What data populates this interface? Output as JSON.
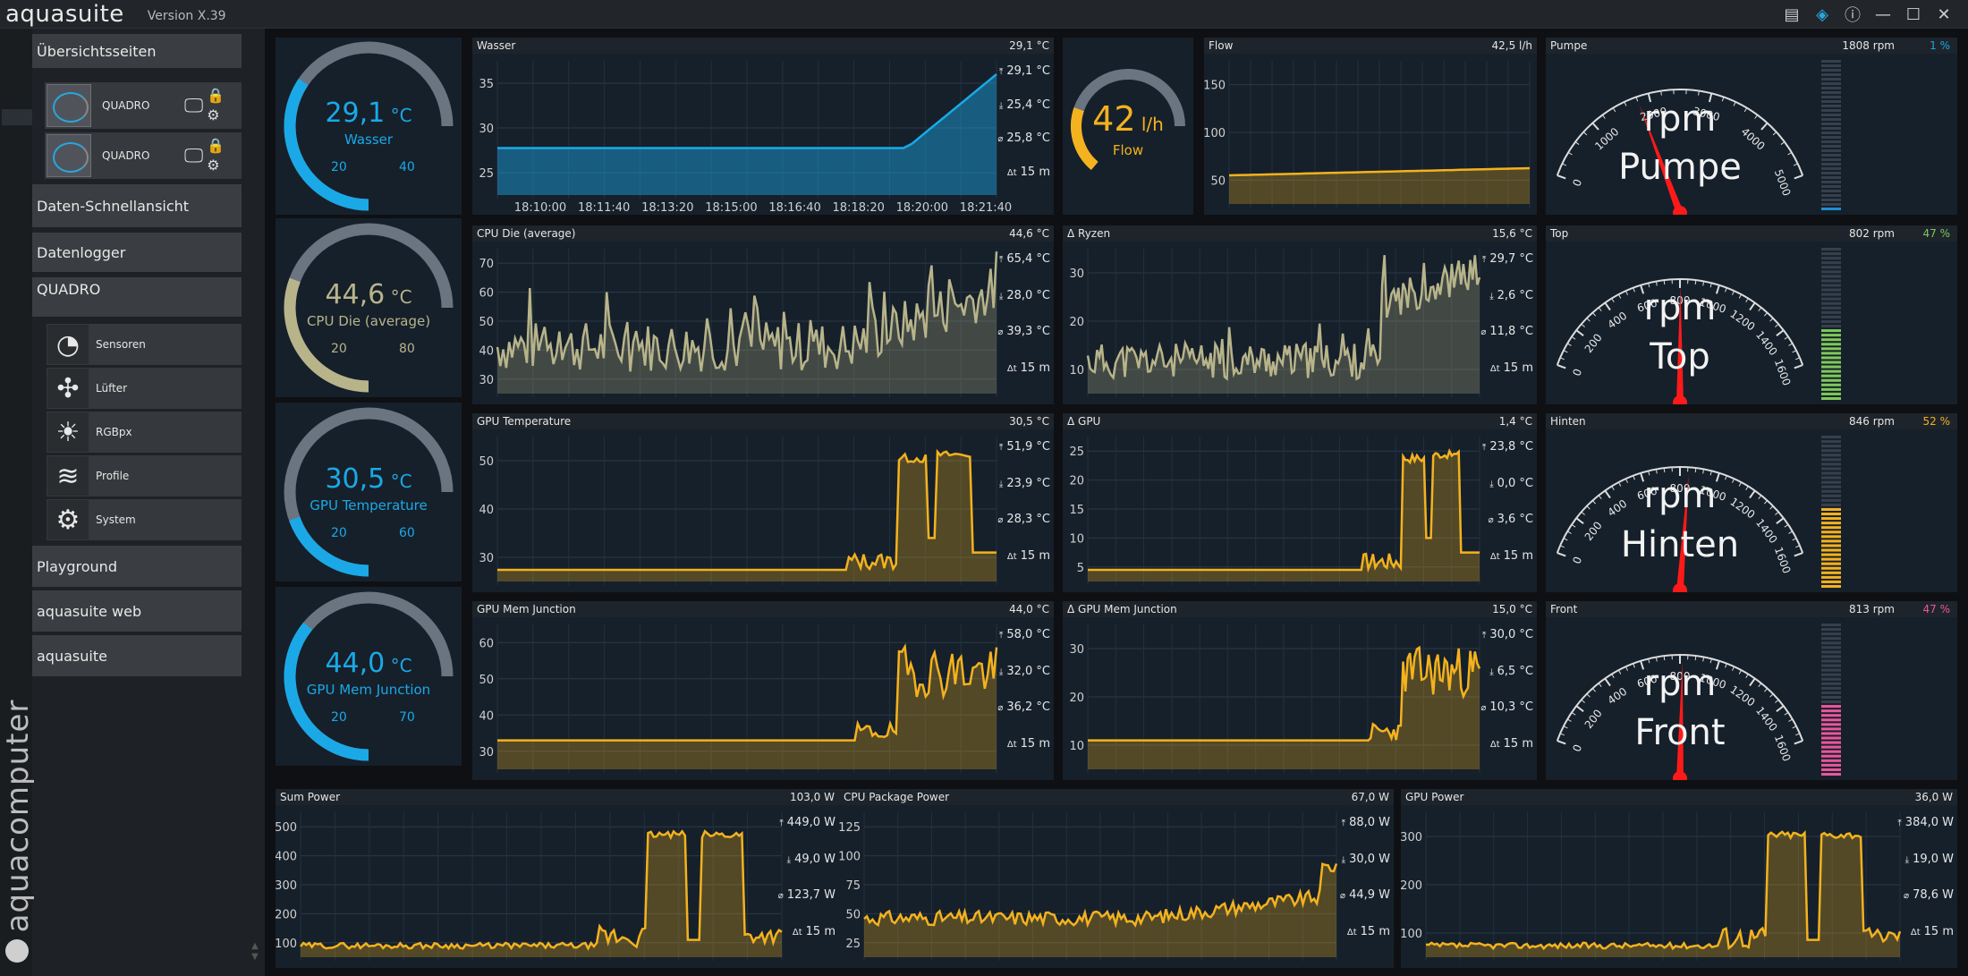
{
  "app": {
    "title": "aquasuite",
    "version": "Version X.39",
    "brand": "aquacomputer"
  },
  "sidebar": {
    "overview_label": "Übersichtsseiten",
    "pages": [
      {
        "label": "QUADRO"
      },
      {
        "label": "QUADRO"
      }
    ],
    "quick_view": "Daten-Schnellansicht",
    "datalogger": "Datenlogger",
    "device": "QUADRO",
    "device_items": [
      {
        "label": "Sensoren",
        "icon": "gauge-icon"
      },
      {
        "label": "Lüfter",
        "icon": "fan-icon"
      },
      {
        "label": "RGBpx",
        "icon": "lightbulb-icon"
      },
      {
        "label": "Profile",
        "icon": "layers-icon"
      },
      {
        "label": "System",
        "icon": "gear-icon"
      }
    ],
    "playground": "Playground",
    "web": "aquasuite web",
    "aquasuite": "aquasuite"
  },
  "colors": {
    "accent_blue": "#1aa9e6",
    "olive": "#b8b48a",
    "amber": "#f4b21e",
    "track": "#6b7481"
  },
  "gauges": [
    {
      "value": "29,1",
      "unit": "°C",
      "name": "Wasser",
      "min": "20",
      "max": "40",
      "fraction": 0.46,
      "color": "#1aa9e6"
    },
    {
      "value": "44,6",
      "unit": "°C",
      "name": "CPU Die (average)",
      "min": "20",
      "max": "80",
      "fraction": 0.41,
      "color": "#b8b48a"
    },
    {
      "value": "30,5",
      "unit": "°C",
      "name": "GPU Temperature",
      "min": "20",
      "max": "60",
      "fraction": 0.26,
      "color": "#1aa9e6"
    },
    {
      "value": "44,0",
      "unit": "°C",
      "name": "GPU Mem Junction",
      "min": "20",
      "max": "70",
      "fraction": 0.48,
      "color": "#1aa9e6"
    }
  ],
  "flow_gauge": {
    "value": "42",
    "unit": "l/h",
    "name": "Flow",
    "fraction": 0.3,
    "color": "#f4b21e"
  },
  "charts": {
    "wasser": {
      "title": "Wasser",
      "current": "29,1 °C",
      "yticks": [
        "35",
        "30",
        "25"
      ],
      "xticks": [
        "18:10:00",
        "18:11:40",
        "18:13:20",
        "18:15:00",
        "18:16:40",
        "18:18:20",
        "18:20:00",
        "18:21:40"
      ],
      "stats": [
        "29,1 °C",
        "25,4 °C",
        "25,8 °C",
        "15 m"
      ],
      "color": "#1aa9e6"
    },
    "flow": {
      "title": "Flow",
      "current": "42,5 l/h",
      "yticks": [
        "150",
        "100",
        "50"
      ],
      "color": "#f4b21e"
    },
    "cpu_die": {
      "title": "CPU Die (average)",
      "current": "44,6 °C",
      "yticks": [
        "70",
        "60",
        "50",
        "40",
        "30"
      ],
      "stats": [
        "65,4 °C",
        "28,0 °C",
        "39,3 °C",
        "15 m"
      ],
      "color": "#b8b48a"
    },
    "d_ryzen": {
      "title": "Δ Ryzen",
      "current": "15,6 °C",
      "yticks": [
        "30",
        "20",
        "10"
      ],
      "stats": [
        "29,7 °C",
        "2,6 °C",
        "11,8 °C",
        "15 m"
      ],
      "color": "#b8b48a"
    },
    "gpu_temp": {
      "title": "GPU Temperature",
      "current": "30,5 °C",
      "yticks": [
        "50",
        "40",
        "30"
      ],
      "stats": [
        "51,9 °C",
        "23,9 °C",
        "28,3 °C",
        "15 m"
      ],
      "color": "#f4b21e"
    },
    "d_gpu": {
      "title": "Δ GPU",
      "current": "1,4 °C",
      "yticks": [
        "25",
        "20",
        "15",
        "10",
        "5"
      ],
      "stats": [
        "23,8 °C",
        "0,0 °C",
        "3,6 °C",
        "15 m"
      ],
      "color": "#f4b21e"
    },
    "gpu_mem": {
      "title": "GPU Mem Junction",
      "current": "44,0 °C",
      "yticks": [
        "60",
        "50",
        "40",
        "30"
      ],
      "stats": [
        "58,0 °C",
        "32,0 °C",
        "36,2 °C",
        "15 m"
      ],
      "color": "#f4b21e"
    },
    "d_gpu_mem": {
      "title": "Δ GPU Mem Junction",
      "current": "15,0 °C",
      "yticks": [
        "30",
        "20",
        "10"
      ],
      "stats": [
        "30,0 °C",
        "6,5 °C",
        "10,3 °C",
        "15 m"
      ],
      "color": "#f4b21e"
    },
    "sum_power": {
      "title": "Sum Power",
      "current": "103,0 W",
      "yticks": [
        "500",
        "400",
        "300",
        "200",
        "100"
      ],
      "stats": [
        "449,0 W",
        "49,0 W",
        "123,7 W",
        "15 m"
      ],
      "color": "#f4b21e"
    },
    "cpu_power": {
      "title": "CPU Package Power",
      "current": "67,0 W",
      "yticks": [
        "125",
        "100",
        "75",
        "50",
        "25"
      ],
      "stats": [
        "88,0 W",
        "30,0 W",
        "44,9 W",
        "15 m"
      ],
      "color": "#f4b21e"
    },
    "gpu_power": {
      "title": "GPU Power",
      "current": "36,0 W",
      "yticks": [
        "300",
        "200",
        "100"
      ],
      "stats": [
        "384,0 W",
        "19,0 W",
        "78,6 W",
        "15 m"
      ],
      "color": "#f4b21e"
    }
  },
  "meters": [
    {
      "title": "Pumpe",
      "current": "1808 rpm",
      "percent": "1 %",
      "unit": "rpm",
      "name": "Pumpe",
      "scale": [
        "0",
        "1000",
        "2000",
        "3000",
        "4000",
        "5000"
      ],
      "max": 5000,
      "rpm": 1808,
      "level": 0.01,
      "bar_color": "#1f8fd0",
      "pct_color": "#1aa9e6"
    },
    {
      "title": "Top",
      "current": "802 rpm",
      "percent": "47 %",
      "unit": "rpm",
      "name": "Top",
      "scale": [
        "0",
        "200",
        "400",
        "600",
        "800",
        "1000",
        "1200",
        "1400",
        "1600"
      ],
      "max": 1600,
      "rpm": 802,
      "level": 0.47,
      "bar_color": "#7fc85a",
      "pct_color": "#7fc85a"
    },
    {
      "title": "Hinten",
      "current": "846 rpm",
      "percent": "52 %",
      "unit": "rpm",
      "name": "Hinten",
      "scale": [
        "0",
        "200",
        "400",
        "600",
        "800",
        "1000",
        "1200",
        "1400",
        "1600"
      ],
      "max": 1600,
      "rpm": 846,
      "level": 0.52,
      "bar_color": "#f4b21e",
      "pct_color": "#f4b21e"
    },
    {
      "title": "Front",
      "current": "813 rpm",
      "percent": "47 %",
      "unit": "rpm",
      "name": "Front",
      "scale": [
        "0",
        "200",
        "400",
        "600",
        "800",
        "1000",
        "1200",
        "1400",
        "1600"
      ],
      "max": 1600,
      "rpm": 813,
      "level": 0.47,
      "bar_color": "#e8579b",
      "pct_color": "#e8579b"
    }
  ]
}
